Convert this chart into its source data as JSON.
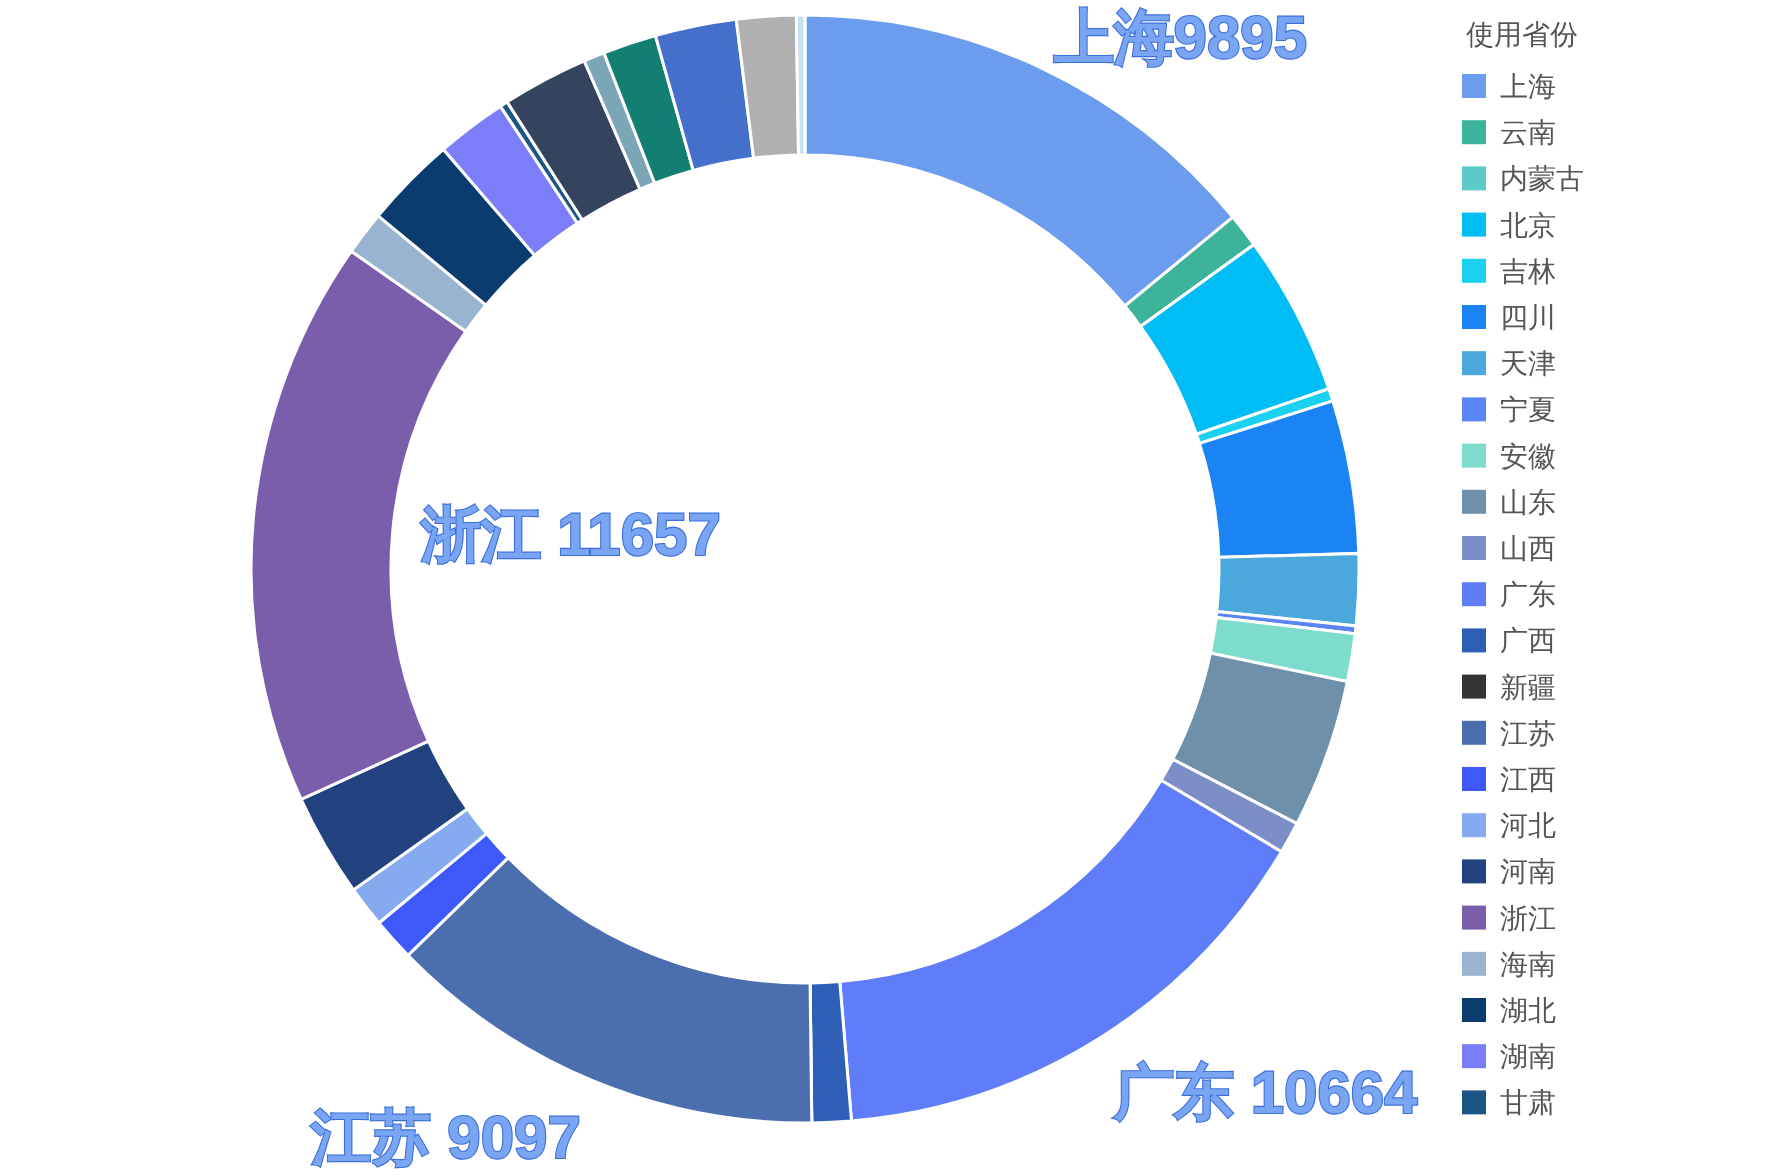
{
  "chart_data": {
    "type": "donut",
    "legend_title": "使用省份",
    "legend": "right",
    "categories": [
      "上海",
      "云南",
      "内蒙古",
      "北京",
      "吉林",
      "四川",
      "天津",
      "宁夏",
      "安徽",
      "山东",
      "山西",
      "广东",
      "广西",
      "新疆",
      "江苏",
      "江西",
      "河北",
      "河南",
      "浙江",
      "海南",
      "湖北",
      "湖南",
      "甘肃",
      null,
      null,
      null,
      null,
      null,
      null
    ],
    "values": [
      9895,
      700,
      0,
      3300,
      260,
      3140,
      1470,
      160,
      980,
      3060,
      650,
      10664,
      805,
      0,
      9097,
      880,
      845,
      2120,
      11657,
      900,
      1885,
      1450,
      160,
      1770,
      430,
      1100,
      1670,
      1220,
      175
    ],
    "colors": [
      "#6b9cee",
      "#3cb39a",
      "#5ccbc8",
      "#00bdf5",
      "#1ad1f0",
      "#1a84f5",
      "#4aa8dc",
      "#5a85f5",
      "#7ddccb",
      "#6f90ab",
      "#7b8ec8",
      "#5f7df9",
      "#2c5fb5",
      "#333333",
      "#4b6fae",
      "#3f58fa",
      "#86aaf0",
      "#22427f",
      "#7b5eab",
      "#99b4d1",
      "#0a3c70",
      "#7b7ef8",
      "#1d5585",
      "#34445f",
      "#7aa6b8",
      "#127f72",
      "#4470cc",
      "#b0b0b0",
      "#c8dff5"
    ],
    "value_labels": [
      "上海9895",
      null,
      null,
      null,
      null,
      null,
      null,
      null,
      null,
      null,
      null,
      "广东 10664",
      null,
      null,
      "江苏 9097",
      null,
      null,
      null,
      "浙江 11657",
      null,
      null,
      null,
      null,
      null,
      null,
      null,
      null,
      null,
      null
    ]
  }
}
